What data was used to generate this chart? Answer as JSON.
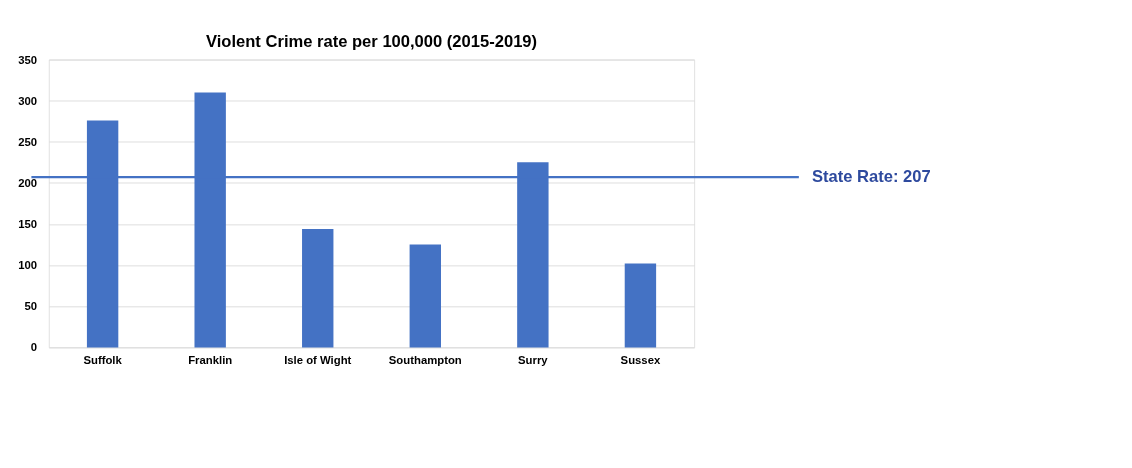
{
  "chart_data": {
    "type": "bar",
    "title": "Violent Crime rate per 100,000 (2015-2019)",
    "categories": [
      "Suffolk",
      "Franklin",
      "Isle of Wight",
      "Southampton",
      "Surry",
      "Sussex"
    ],
    "values": [
      276,
      310,
      144,
      125,
      225,
      102
    ],
    "color": "#4472c4",
    "ylim": [
      0,
      350
    ],
    "yticks": [
      0,
      50,
      100,
      150,
      200,
      250,
      300,
      350
    ],
    "grid": "y",
    "ref_lines": [
      {
        "axis": "y",
        "value": 207,
        "label": "State Rate: 207",
        "color": "#4472c4"
      }
    ]
  }
}
